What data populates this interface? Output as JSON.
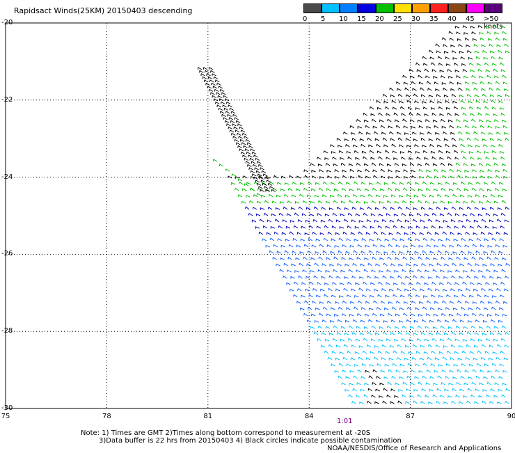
{
  "title": "Rapidsact Winds(25KM) 20150403 descending",
  "legend": {
    "labels": [
      "0",
      "5",
      "10",
      "15",
      "20",
      "25",
      "30",
      "35",
      "40",
      "45",
      ">50 knots"
    ],
    "colors": [
      "#4a4a4a",
      "#00c0ff",
      "#0080ff",
      "#0000e0",
      "#00c000",
      "#ffe000",
      "#ffa000",
      "#ff2020",
      "#8b4513",
      "#ff00ff",
      "#5a007a"
    ]
  },
  "axes": {
    "y_ticks": [
      "-20",
      "-22",
      "-24",
      "-26",
      "-28",
      "-30"
    ],
    "x_ticks": [
      "75",
      "78",
      "81",
      "84",
      "87",
      "90"
    ],
    "lat_range": [
      -30,
      -20
    ],
    "lon_range": [
      75,
      90
    ],
    "grid": "dotted"
  },
  "time_label": "1:01",
  "notes": {
    "line1": "Note: 1) Times are GMT 2)Times along bottom correspond to measurement at -20S",
    "line2": "3)Data buffer is 22 hrs from 20150403 4) Black circles indicate possible contamination"
  },
  "credit": "NOAA/NESDIS/Office of Research and Applications",
  "wind_colors": {
    "black": "#000000",
    "green": "#00c000",
    "navy": "#0000c0",
    "blue": "#1060ff",
    "cyan": "#00c0ff",
    "yellow": "#ffe000"
  }
}
